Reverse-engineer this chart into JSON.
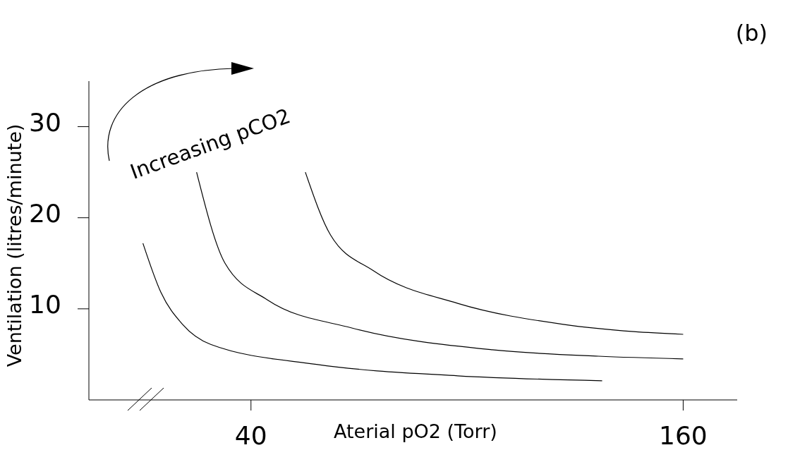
{
  "chart_data": {
    "type": "line",
    "title": "(b)",
    "xlabel": "Aterial pO2 (Torr)",
    "ylabel": "Ventilation (litres/minute)",
    "annotations": [
      "Increasing pCO2"
    ],
    "xlim": [
      -5,
      175
    ],
    "ylim": [
      0,
      35
    ],
    "xticks": [
      40,
      160
    ],
    "yticks": [
      10,
      20,
      30
    ],
    "line_style": "solid",
    "series": [
      {
        "color": "#000000",
        "x": [
          10,
          15,
          21,
          28.8,
          58.2,
          97.4,
          137.5
        ],
        "values": [
          17.2,
          11.8,
          8.3,
          6.1,
          3.9,
          2.65,
          2.1
        ]
      },
      {
        "color": "#000000",
        "x": [
          24.9,
          32.8,
          44.5,
          68,
          107,
          136.5,
          160
        ],
        "values": [
          25,
          15,
          11,
          7.9,
          5.5,
          4.8,
          4.5
        ]
      },
      {
        "color": "#000000",
        "x": [
          55.1,
          62.1,
          73.9,
          97.4,
          126.7,
          146.3,
          160
        ],
        "values": [
          25,
          18.1,
          14.2,
          10.6,
          8.3,
          7.5,
          7.2
        ]
      }
    ]
  }
}
